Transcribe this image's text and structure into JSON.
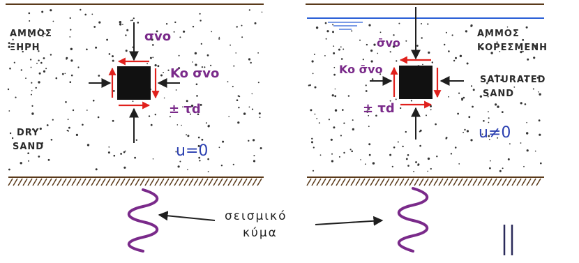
{
  "left_panel": {
    "greek_label_line1": "ΑΜΜΟΣ",
    "greek_label_line2": "ΞΗΡΗ",
    "english_label_line1": "DRY",
    "english_label_line2": "SAND",
    "vertical_stress": "σvo",
    "horizontal_stress": "Ko σvo",
    "shear_stress": "± τd",
    "pore_pressure": "u=0"
  },
  "right_panel": {
    "greek_label_line1": "ΑΜΜΟΣ",
    "greek_label_line2": "ΚΟΡΕΣΜΕΝΗ",
    "english_label_line1": "SATURATED",
    "english_label_line2": "SAND",
    "vertical_stress": "σ̄vo",
    "horizontal_stress": "Ko σ̄vo",
    "shear_stress": "± τd",
    "pore_pressure": "u≠0"
  },
  "wave_label_line1": "σεισμικό",
  "wave_label_line2": "κύμα",
  "colors": {
    "ink": "#1f1f1f",
    "stress_text": "#7a2a8a",
    "pore_pressure_text": "#2a3fb0",
    "water_table": "#2a5fd6",
    "wave": "#7a2a8a",
    "shear_arrows": "#e0201c",
    "ground_hatch": "#5a3a1a"
  }
}
